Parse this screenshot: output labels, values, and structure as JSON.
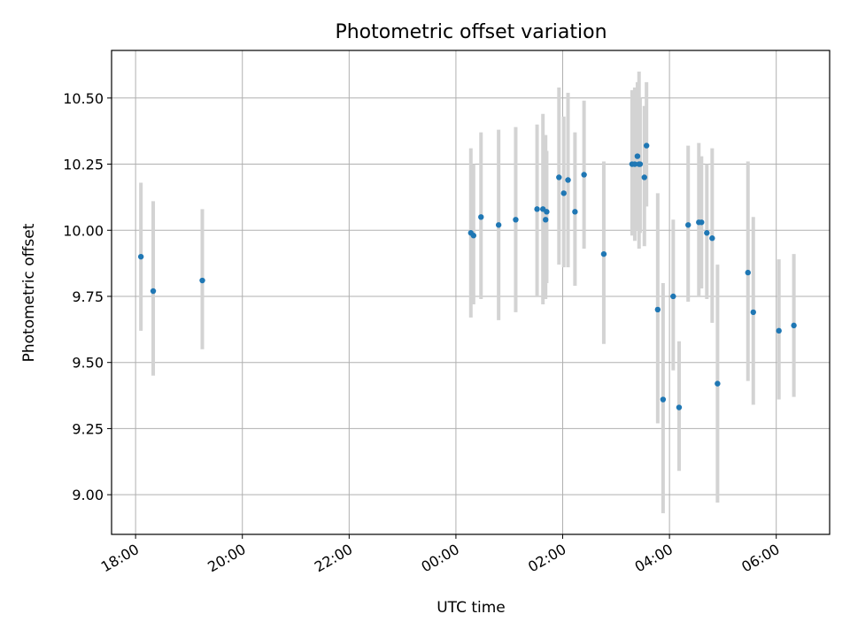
{
  "chart_data": {
    "type": "scatter",
    "title": "Photometric offset variation",
    "xlabel": "UTC time",
    "ylabel": "Photometric offset",
    "grid": true,
    "colors": {
      "point": "#1f77b4",
      "errorbar": "#d3d3d3",
      "grid": "#b0b0b0",
      "axis": "#000000"
    },
    "xlim_hours": [
      17.55,
      31.0
    ],
    "ylim": [
      8.85,
      10.68
    ],
    "x_ticks": [
      {
        "value": 18,
        "label": "18:00"
      },
      {
        "value": 20,
        "label": "20:00"
      },
      {
        "value": 22,
        "label": "22:00"
      },
      {
        "value": 24,
        "label": "00:00"
      },
      {
        "value": 26,
        "label": "02:00"
      },
      {
        "value": 28,
        "label": "04:00"
      },
      {
        "value": 30,
        "label": "06:00"
      }
    ],
    "y_ticks": [
      {
        "value": 9.0,
        "label": "9.00"
      },
      {
        "value": 9.25,
        "label": "9.25"
      },
      {
        "value": 9.5,
        "label": "9.50"
      },
      {
        "value": 9.75,
        "label": "9.75"
      },
      {
        "value": 10.0,
        "label": "10.00"
      },
      {
        "value": 10.25,
        "label": "10.25"
      },
      {
        "value": 10.5,
        "label": "10.50"
      }
    ],
    "points": [
      {
        "t": 18.1,
        "y": 9.9,
        "lo": 9.62,
        "hi": 10.18
      },
      {
        "t": 18.33,
        "y": 9.77,
        "lo": 9.45,
        "hi": 10.11
      },
      {
        "t": 19.25,
        "y": 9.81,
        "lo": 9.55,
        "hi": 10.08
      },
      {
        "t": 24.28,
        "y": 9.99,
        "lo": 9.67,
        "hi": 10.31
      },
      {
        "t": 24.33,
        "y": 9.98,
        "lo": 9.72,
        "hi": 10.25
      },
      {
        "t": 24.47,
        "y": 10.05,
        "lo": 9.74,
        "hi": 10.37
      },
      {
        "t": 24.8,
        "y": 10.02,
        "lo": 9.66,
        "hi": 10.38
      },
      {
        "t": 25.12,
        "y": 10.04,
        "lo": 9.69,
        "hi": 10.39
      },
      {
        "t": 25.52,
        "y": 10.08,
        "lo": 9.75,
        "hi": 10.4
      },
      {
        "t": 25.63,
        "y": 10.08,
        "lo": 9.72,
        "hi": 10.44
      },
      {
        "t": 25.68,
        "y": 10.04,
        "lo": 9.74,
        "hi": 10.36
      },
      {
        "t": 25.7,
        "y": 10.07,
        "lo": 9.8,
        "hi": 10.3
      },
      {
        "t": 25.93,
        "y": 10.2,
        "lo": 9.87,
        "hi": 10.54
      },
      {
        "t": 26.02,
        "y": 10.14,
        "lo": 9.86,
        "hi": 10.43
      },
      {
        "t": 26.1,
        "y": 10.19,
        "lo": 9.86,
        "hi": 10.52
      },
      {
        "t": 26.23,
        "y": 10.07,
        "lo": 9.79,
        "hi": 10.37
      },
      {
        "t": 26.4,
        "y": 10.21,
        "lo": 9.93,
        "hi": 10.49
      },
      {
        "t": 26.77,
        "y": 9.91,
        "lo": 9.57,
        "hi": 10.26
      },
      {
        "t": 27.3,
        "y": 10.25,
        "lo": 9.98,
        "hi": 10.53
      },
      {
        "t": 27.35,
        "y": 10.25,
        "lo": 9.96,
        "hi": 10.54
      },
      {
        "t": 27.4,
        "y": 10.28,
        "lo": 10.0,
        "hi": 10.56
      },
      {
        "t": 27.43,
        "y": 10.25,
        "lo": 9.93,
        "hi": 10.6
      },
      {
        "t": 27.45,
        "y": 10.25,
        "lo": 9.99,
        "hi": 10.5
      },
      {
        "t": 27.53,
        "y": 10.2,
        "lo": 9.94,
        "hi": 10.47
      },
      {
        "t": 27.57,
        "y": 10.32,
        "lo": 10.09,
        "hi": 10.56
      },
      {
        "t": 27.78,
        "y": 9.7,
        "lo": 9.27,
        "hi": 10.14
      },
      {
        "t": 27.88,
        "y": 9.36,
        "lo": 8.93,
        "hi": 9.8
      },
      {
        "t": 28.07,
        "y": 9.75,
        "lo": 9.47,
        "hi": 10.04
      },
      {
        "t": 28.18,
        "y": 9.33,
        "lo": 9.09,
        "hi": 9.58
      },
      {
        "t": 28.35,
        "y": 10.02,
        "lo": 9.73,
        "hi": 10.32
      },
      {
        "t": 28.55,
        "y": 10.03,
        "lo": 9.75,
        "hi": 10.33
      },
      {
        "t": 28.6,
        "y": 10.03,
        "lo": 9.78,
        "hi": 10.28
      },
      {
        "t": 28.7,
        "y": 9.99,
        "lo": 9.74,
        "hi": 10.25
      },
      {
        "t": 28.8,
        "y": 9.97,
        "lo": 9.65,
        "hi": 10.31
      },
      {
        "t": 28.9,
        "y": 9.42,
        "lo": 8.97,
        "hi": 9.87
      },
      {
        "t": 29.47,
        "y": 9.84,
        "lo": 9.43,
        "hi": 10.26
      },
      {
        "t": 29.57,
        "y": 9.69,
        "lo": 9.34,
        "hi": 10.05
      },
      {
        "t": 30.05,
        "y": 9.62,
        "lo": 9.36,
        "hi": 9.89
      },
      {
        "t": 30.33,
        "y": 9.64,
        "lo": 9.37,
        "hi": 9.91
      }
    ]
  }
}
